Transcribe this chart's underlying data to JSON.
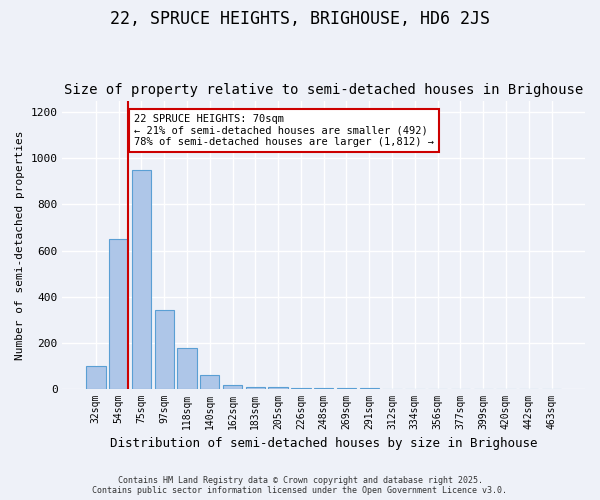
{
  "title": "22, SPRUCE HEIGHTS, BRIGHOUSE, HD6 2JS",
  "subtitle": "Size of property relative to semi-detached houses in Brighouse",
  "xlabel": "Distribution of semi-detached houses by size in Brighouse",
  "ylabel": "Number of semi-detached properties",
  "bin_labels": [
    "32sqm",
    "54sqm",
    "75sqm",
    "97sqm",
    "118sqm",
    "140sqm",
    "162sqm",
    "183sqm",
    "205sqm",
    "226sqm",
    "248sqm",
    "269sqm",
    "291sqm",
    "312sqm",
    "334sqm",
    "356sqm",
    "377sqm",
    "399sqm",
    "420sqm",
    "442sqm",
    "463sqm"
  ],
  "bar_values": [
    100,
    650,
    950,
    340,
    175,
    60,
    15,
    8,
    5,
    3,
    2,
    1,
    1,
    0,
    0,
    0,
    0,
    0,
    0,
    0,
    0
  ],
  "bar_color": "#aec6e8",
  "bar_edge_color": "#5a9fd4",
  "property_bin_index": 1,
  "annotation_text": "22 SPRUCE HEIGHTS: 70sqm\n← 21% of semi-detached houses are smaller (492)\n78% of semi-detached houses are larger (1,812) →",
  "annotation_box_color": "#cc0000",
  "red_line_color": "#cc0000",
  "ylim": [
    0,
    1250
  ],
  "footer_line1": "Contains HM Land Registry data © Crown copyright and database right 2025.",
  "footer_line2": "Contains public sector information licensed under the Open Government Licence v3.0.",
  "background_color": "#eef1f8",
  "title_fontsize": 12,
  "subtitle_fontsize": 10
}
